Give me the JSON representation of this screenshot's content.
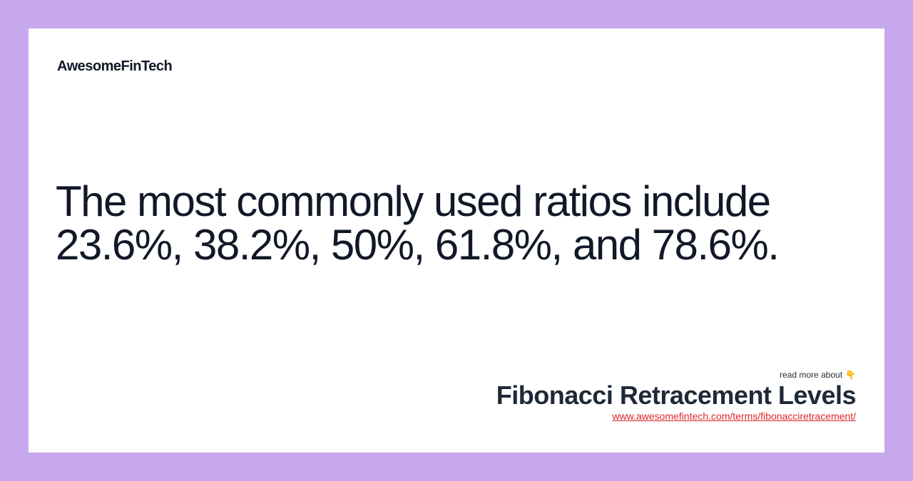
{
  "brand": {
    "name": "AwesomeFinTech"
  },
  "quote": {
    "text": "The most commonly used ratios include 23.6%, 38.2%, 50%, 61.8%, and 78.6%."
  },
  "footer": {
    "read_more_label": "read more about",
    "pointer_icon": "👇",
    "term_title": "Fibonacci Retracement Levels",
    "term_url": "www.awesomefintech.com/terms/fibonacciretracement/"
  },
  "colors": {
    "background": "#c8a8ec",
    "card": "#ffffff",
    "text": "#111827",
    "link": "#dc2626"
  }
}
